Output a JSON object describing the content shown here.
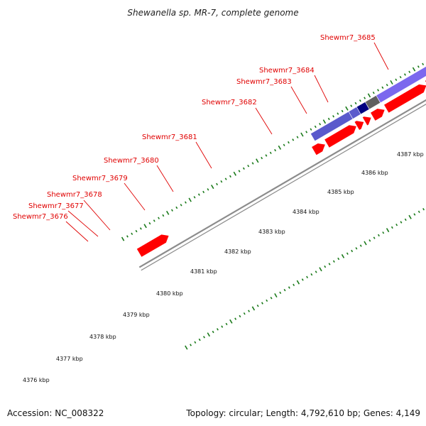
{
  "title": "Shewanella sp. MR-7, complete genome",
  "footer": {
    "accession": "Accession: NC_008322",
    "summary": "Topology: circular; Length: 4,792,610 bp; Genes: 4,149"
  },
  "colors": {
    "gene_label": "#e00000",
    "cds": "#ff0000",
    "tick": "#1a7a1a",
    "backbone": "#8c8c8c"
  },
  "gene_labels": [
    {
      "name": "label-3676",
      "text": "Shewmr7_3676"
    },
    {
      "name": "label-3677",
      "text": "Shewmr7_3677"
    },
    {
      "name": "label-3678",
      "text": "Shewmr7_3678"
    },
    {
      "name": "label-3679",
      "text": "Shewmr7_3679"
    },
    {
      "name": "label-3680",
      "text": "Shewmr7_3680"
    },
    {
      "name": "label-3681",
      "text": "Shewmr7_3681"
    },
    {
      "name": "label-3682",
      "text": "Shewmr7_3682"
    },
    {
      "name": "label-3683",
      "text": "Shewmr7_3683"
    },
    {
      "name": "label-3684",
      "text": "Shewmr7_3684"
    },
    {
      "name": "label-3685",
      "text": "Shewmr7_3685"
    }
  ],
  "kbp_labels": [
    "4376 kbp",
    "4377 kbp",
    "4378 kbp",
    "4379 kbp",
    "4380 kbp",
    "4381 kbp",
    "4382 kbp",
    "4383 kbp",
    "4384 kbp",
    "4385 kbp",
    "4386 kbp",
    "4387 kbp"
  ],
  "feature_colors": {
    "3676": "#5a5acc",
    "3677": "#000080",
    "3678": "#5a5acc",
    "3679": "#606060",
    "3680": "#7b68ee",
    "3681": "#6b8e23",
    "3682": "#4682b4",
    "3683": "#c0c0c0",
    "3685": "#c8c8c8"
  }
}
